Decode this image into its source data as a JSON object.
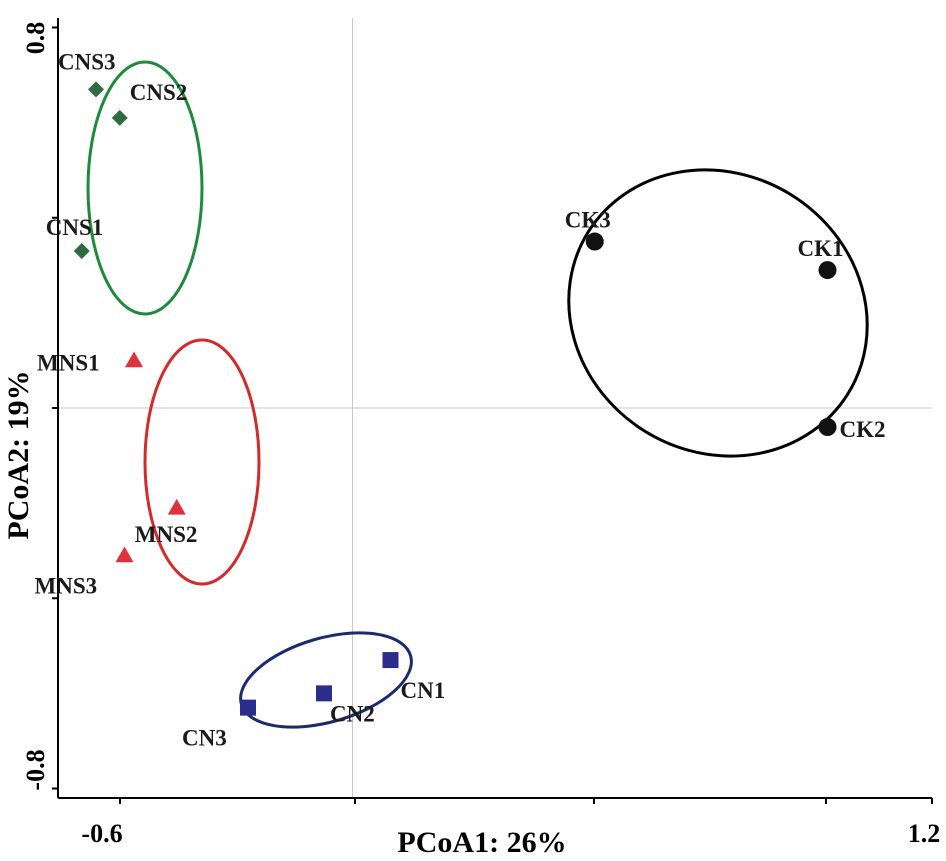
{
  "chart_data": {
    "type": "scatter",
    "title": "",
    "xlabel": "PCoA1: 26%",
    "ylabel": "PCoA2: 19%",
    "xlim": [
      -0.62,
      1.22
    ],
    "ylim": [
      -0.82,
      0.82
    ],
    "x_tick_labels": [
      "-0.6",
      "1.2"
    ],
    "y_tick_labels": [
      "0.8",
      "-0.8"
    ],
    "grid": "zero-lines",
    "series": [
      {
        "name": "CNS",
        "marker": "diamond",
        "color": "#2e6b3e",
        "ellipse_color": "#1f8a3c",
        "points": [
          {
            "label": "CNS1",
            "x": -0.57,
            "y": 0.33
          },
          {
            "label": "CNS2",
            "x": -0.49,
            "y": 0.61
          },
          {
            "label": "CNS3",
            "x": -0.54,
            "y": 0.67
          }
        ]
      },
      {
        "name": "MNS",
        "marker": "triangle",
        "color": "#e0323c",
        "ellipse_color": "#d42a2a",
        "points": [
          {
            "label": "MNS1",
            "x": -0.46,
            "y": 0.1
          },
          {
            "label": "MNS2",
            "x": -0.37,
            "y": -0.21
          },
          {
            "label": "MNS3",
            "x": -0.48,
            "y": -0.31
          }
        ]
      },
      {
        "name": "CN",
        "marker": "square",
        "color": "#2b2d8a",
        "ellipse_color": "#1a2a6e",
        "points": [
          {
            "label": "CN1",
            "x": 0.08,
            "y": -0.53
          },
          {
            "label": "CN2",
            "x": -0.06,
            "y": -0.6
          },
          {
            "label": "CN3",
            "x": -0.22,
            "y": -0.63
          }
        ]
      },
      {
        "name": "CK",
        "marker": "circle",
        "color": "#111111",
        "ellipse_color": "#000000",
        "points": [
          {
            "label": "CK1",
            "x": 1.0,
            "y": 0.29
          },
          {
            "label": "CK2",
            "x": 1.0,
            "y": -0.04
          },
          {
            "label": "CK3",
            "x": 0.51,
            "y": 0.35
          }
        ]
      }
    ]
  }
}
